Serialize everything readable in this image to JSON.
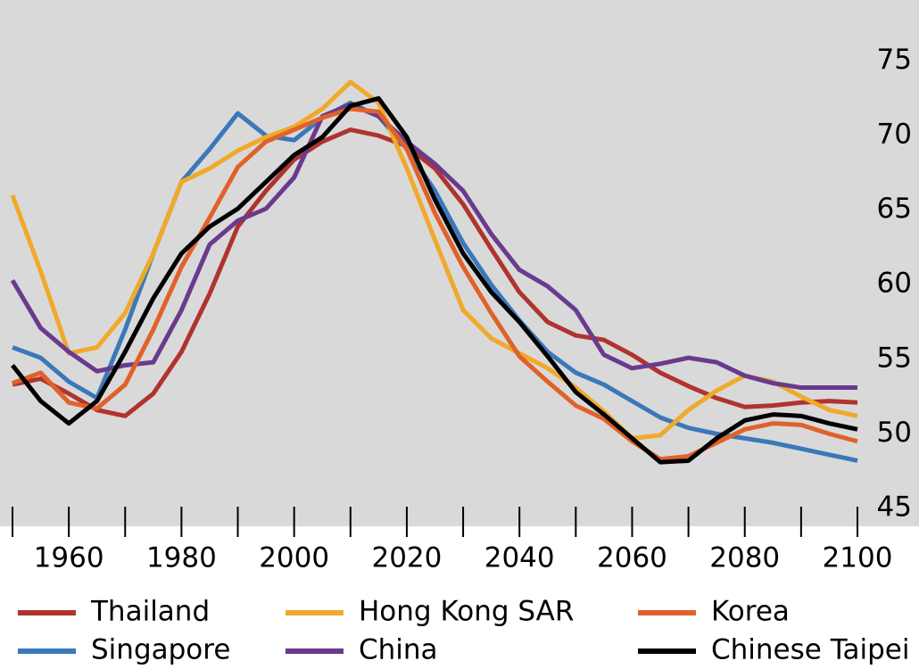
{
  "chart_data": {
    "type": "line",
    "x": [
      1950,
      1955,
      1960,
      1965,
      1970,
      1975,
      1980,
      1985,
      1990,
      1995,
      2000,
      2005,
      2010,
      2015,
      2020,
      2025,
      2030,
      2035,
      2040,
      2045,
      2050,
      2055,
      2060,
      2065,
      2070,
      2075,
      2080,
      2085,
      2090,
      2095,
      2100
    ],
    "series": [
      {
        "name": "Thailand",
        "color": "#b0332e",
        "values": [
          53.3,
          53.7,
          52.7,
          51.6,
          51.2,
          52.7,
          55.5,
          59.4,
          63.9,
          66.3,
          68.4,
          69.6,
          70.4,
          70.0,
          69.3,
          67.8,
          65.4,
          62.4,
          59.5,
          57.5,
          56.6,
          56.3,
          55.3,
          54.1,
          53.2,
          52.4,
          51.8,
          51.9,
          52.1,
          52.2,
          52.1
        ]
      },
      {
        "name": "Singapore",
        "color": "#3a78b9",
        "values": [
          55.8,
          55.1,
          53.5,
          52.4,
          57.0,
          62.1,
          66.9,
          69.1,
          71.5,
          70.0,
          69.7,
          71.2,
          72.2,
          71.3,
          69.1,
          66.3,
          62.8,
          60.0,
          57.6,
          55.5,
          54.1,
          53.3,
          52.2,
          51.1,
          50.4,
          50.0,
          49.7,
          49.4,
          49.0,
          48.6,
          48.2
        ]
      },
      {
        "name": "Hong Kong SAR",
        "color": "#f0a92a",
        "values": [
          66.0,
          60.9,
          55.4,
          55.8,
          58.1,
          62.1,
          66.9,
          67.8,
          69.0,
          69.9,
          70.6,
          71.8,
          73.6,
          72.2,
          67.8,
          63.0,
          58.3,
          56.4,
          55.4,
          54.4,
          53.1,
          51.5,
          49.7,
          49.9,
          51.6,
          52.9,
          53.9,
          53.5,
          52.5,
          51.6,
          51.2
        ]
      },
      {
        "name": "China",
        "color": "#6a3a8e",
        "values": [
          60.3,
          57.1,
          55.5,
          54.2,
          54.6,
          54.8,
          58.3,
          62.7,
          64.3,
          65.1,
          67.2,
          71.3,
          72.1,
          71.3,
          69.6,
          68.1,
          66.3,
          63.4,
          61.0,
          59.9,
          58.3,
          55.3,
          54.4,
          54.7,
          55.1,
          54.8,
          53.9,
          53.4,
          53.1,
          53.1,
          53.1
        ]
      },
      {
        "name": "Korea",
        "color": "#e0622a",
        "values": [
          53.4,
          54.1,
          52.1,
          51.7,
          53.3,
          57.0,
          61.2,
          64.5,
          67.9,
          69.6,
          70.4,
          71.2,
          71.8,
          71.6,
          69.1,
          64.8,
          61.2,
          58.1,
          55.2,
          53.5,
          51.9,
          51.0,
          49.5,
          48.3,
          48.5,
          49.4,
          50.3,
          50.7,
          50.6,
          50.0,
          49.5
        ]
      },
      {
        "name": "Chinese Taipei",
        "color": "#000000",
        "values": [
          54.6,
          52.2,
          50.7,
          52.2,
          55.5,
          59.1,
          62.1,
          63.9,
          65.1,
          66.9,
          68.7,
          69.9,
          72.0,
          72.5,
          69.9,
          65.7,
          62.1,
          59.5,
          57.5,
          55.2,
          52.8,
          51.3,
          49.7,
          48.1,
          48.2,
          49.7,
          50.9,
          51.3,
          51.2,
          50.7,
          50.3
        ]
      }
    ],
    "xlim": [
      1950,
      2100
    ],
    "xticks": [
      1960,
      1980,
      2000,
      2020,
      2040,
      2060,
      2080,
      2100
    ],
    "xminorticks": [
      1950,
      1970,
      1990,
      2010,
      2030,
      2050,
      2070,
      2090
    ],
    "ylim": [
      43.8,
      79.1
    ],
    "yticks": [
      45,
      50,
      55,
      60,
      65,
      70,
      75
    ],
    "background": "#d9d9d9"
  }
}
